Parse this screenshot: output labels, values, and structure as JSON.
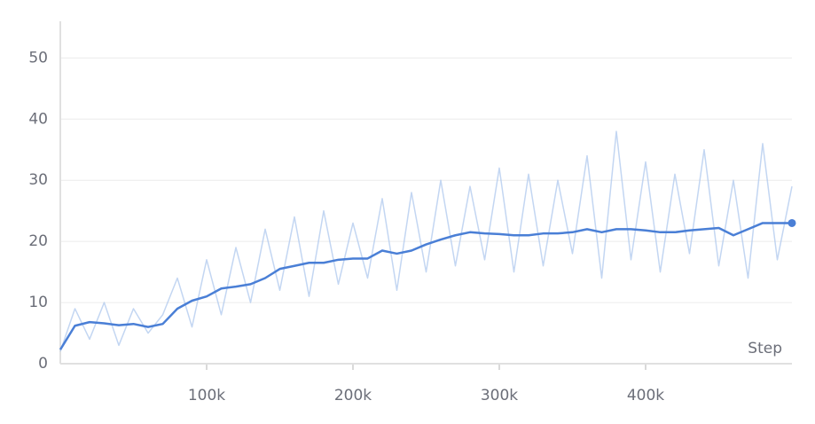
{
  "chart_data": {
    "type": "line",
    "x_label": "Step",
    "x": [
      0,
      10000,
      20000,
      30000,
      40000,
      50000,
      60000,
      70000,
      80000,
      90000,
      100000,
      110000,
      120000,
      130000,
      140000,
      150000,
      160000,
      170000,
      180000,
      190000,
      200000,
      210000,
      220000,
      230000,
      240000,
      250000,
      260000,
      270000,
      280000,
      290000,
      300000,
      310000,
      320000,
      330000,
      340000,
      350000,
      360000,
      370000,
      380000,
      390000,
      400000,
      410000,
      420000,
      430000,
      440000,
      450000,
      460000,
      470000,
      480000,
      490000,
      500000
    ],
    "series": [
      {
        "color": "#a9c4ec",
        "values": [
          2,
          9,
          4,
          10,
          3,
          9,
          5,
          8,
          14,
          6,
          17,
          8,
          19,
          10,
          22,
          12,
          24,
          11,
          25,
          13,
          23,
          14,
          27,
          12,
          28,
          15,
          30,
          16,
          29,
          17,
          32,
          15,
          31,
          16,
          30,
          18,
          34,
          14,
          38,
          17,
          33,
          15,
          31,
          18,
          35,
          16,
          30,
          14,
          36,
          17,
          29
        ]
      },
      {
        "color": "#4a7fd6",
        "values": [
          2.3,
          6.2,
          6.8,
          6.6,
          6.3,
          6.5,
          6.0,
          6.5,
          9,
          10.3,
          11,
          12.3,
          12.6,
          13,
          14,
          15.5,
          16,
          16.5,
          16.5,
          17,
          17.2,
          17.2,
          18.5,
          18,
          18.5,
          19.5,
          20.3,
          21,
          21.5,
          21.3,
          21.2,
          21,
          21,
          21.3,
          21.3,
          21.5,
          22,
          21.5,
          22,
          22,
          21.8,
          21.5,
          21.5,
          21.8,
          22,
          22.2,
          21,
          22,
          23,
          23,
          23
        ]
      }
    ],
    "xlim": [
      0,
      500000
    ],
    "ylim": [
      0,
      56
    ],
    "xticks": [
      {
        "value": 100000,
        "label": "100k"
      },
      {
        "value": 200000,
        "label": "200k"
      },
      {
        "value": 300000,
        "label": "300k"
      },
      {
        "value": 400000,
        "label": "400k"
      }
    ],
    "yticks": [
      0,
      10,
      20,
      30,
      40,
      50
    ],
    "grid": true
  }
}
